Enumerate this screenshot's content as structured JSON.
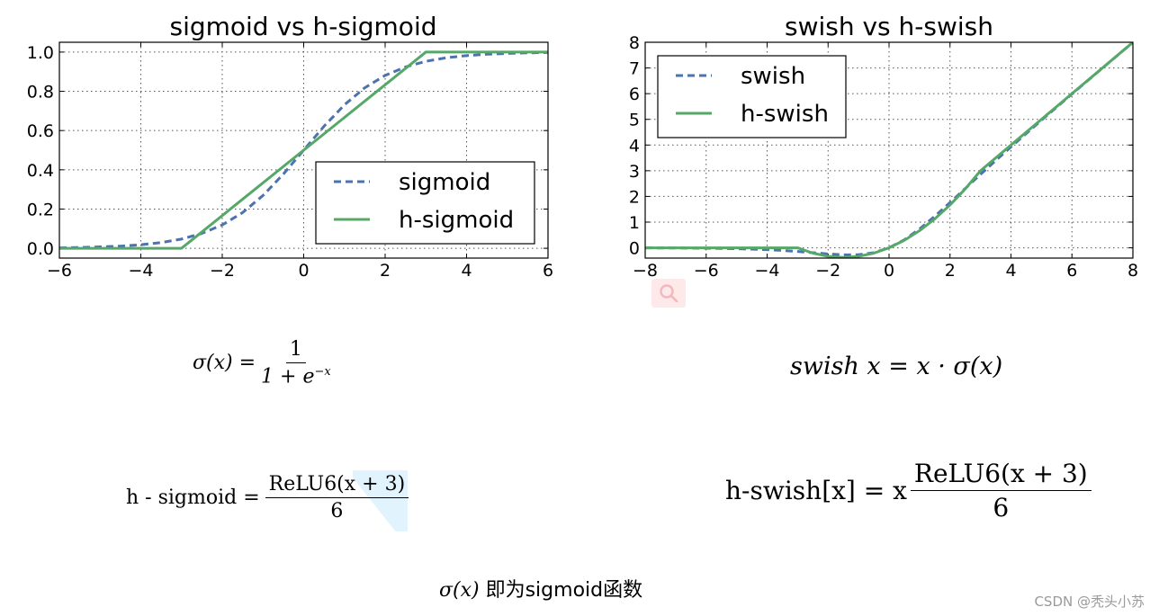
{
  "chart_data": [
    {
      "type": "line",
      "title": "sigmoid vs h-sigmoid",
      "xlabel": "",
      "ylabel": "",
      "xlim": [
        -6,
        6
      ],
      "ylim": [
        -0.05,
        1.05
      ],
      "xticks": [
        -6,
        -4,
        -2,
        0,
        2,
        4,
        6
      ],
      "xtick_labels": [
        "−6",
        "−4",
        "−2",
        "0",
        "2",
        "4",
        "6"
      ],
      "yticks": [
        0.0,
        0.2,
        0.4,
        0.6,
        0.8,
        1.0
      ],
      "ytick_labels": [
        "0.0",
        "0.2",
        "0.4",
        "0.6",
        "0.8",
        "1.0"
      ],
      "grid": true,
      "legend_position": "lower-right",
      "series": [
        {
          "name": "sigmoid",
          "style": "dashed",
          "color": "#4c72b0",
          "x": [
            -6,
            -5.5,
            -5,
            -4.5,
            -4,
            -3.5,
            -3,
            -2.5,
            -2,
            -1.5,
            -1,
            -0.5,
            0,
            0.5,
            1,
            1.5,
            2,
            2.5,
            3,
            3.5,
            4,
            4.5,
            5,
            5.5,
            6
          ],
          "y": [
            0.002,
            0.004,
            0.007,
            0.011,
            0.018,
            0.029,
            0.047,
            0.076,
            0.119,
            0.182,
            0.269,
            0.378,
            0.5,
            0.622,
            0.731,
            0.818,
            0.881,
            0.924,
            0.953,
            0.971,
            0.982,
            0.989,
            0.993,
            0.996,
            0.998
          ]
        },
        {
          "name": "h-sigmoid",
          "style": "solid",
          "color": "#55a868",
          "x": [
            -6,
            -3,
            3,
            6
          ],
          "y": [
            0,
            0,
            1,
            1
          ]
        }
      ]
    },
    {
      "type": "line",
      "title": "swish vs h-swish",
      "xlabel": "",
      "ylabel": "",
      "xlim": [
        -8,
        8
      ],
      "ylim": [
        -0.4,
        8
      ],
      "xticks": [
        -8,
        -6,
        -4,
        -2,
        0,
        2,
        4,
        6,
        8
      ],
      "xtick_labels": [
        "−8",
        "−6",
        "−4",
        "−2",
        "0",
        "2",
        "4",
        "6",
        "8"
      ],
      "yticks": [
        0,
        1,
        2,
        3,
        4,
        5,
        6,
        7,
        8
      ],
      "ytick_labels": [
        "0",
        "1",
        "2",
        "3",
        "4",
        "5",
        "6",
        "7",
        "8"
      ],
      "grid": true,
      "legend_position": "upper-left",
      "series": [
        {
          "name": "swish",
          "style": "dashed",
          "color": "#4c72b0",
          "x": [
            -8,
            -7,
            -6,
            -5,
            -4,
            -3.5,
            -3,
            -2.5,
            -2,
            -1.5,
            -1,
            -0.5,
            0,
            0.5,
            1,
            1.5,
            2,
            2.5,
            3,
            3.5,
            4,
            5,
            6,
            7,
            8
          ],
          "y": [
            -0.003,
            -0.006,
            -0.015,
            -0.033,
            -0.072,
            -0.103,
            -0.142,
            -0.189,
            -0.238,
            -0.274,
            -0.269,
            -0.189,
            0,
            0.311,
            0.731,
            1.226,
            1.762,
            2.311,
            2.858,
            3.398,
            3.928,
            4.967,
            5.985,
            6.994,
            7.997
          ]
        },
        {
          "name": "h-swish",
          "style": "solid",
          "color": "#55a868",
          "x": [
            -8,
            -3,
            -2.5,
            -2,
            -1.5,
            -1,
            -0.5,
            0,
            0.5,
            1,
            1.5,
            2,
            2.5,
            3,
            8
          ],
          "y": [
            0,
            0,
            -0.208,
            -0.333,
            -0.375,
            -0.333,
            -0.208,
            0,
            0.292,
            0.667,
            1.125,
            1.667,
            2.292,
            3,
            8
          ]
        }
      ]
    }
  ],
  "formulas": {
    "sigma": {
      "lhs": "σ(x) =",
      "num": "1",
      "den": "1 + e",
      "den_exp": "−x"
    },
    "swish": {
      "text": "swish x = x · σ(x)"
    },
    "hsigmoid": {
      "lhs": "h - sigmoid =",
      "num": "ReLU6(x + 3)",
      "den": "6"
    },
    "hswish": {
      "lhs": "h-swish[x] = x",
      "num": "ReLU6(x + 3)",
      "den": "6"
    }
  },
  "caption": {
    "sigma": "σ(x)",
    "rest": "即为sigmoid函数"
  },
  "watermark": "CSDN @秃头小苏",
  "icons": {
    "search": "search-icon"
  }
}
